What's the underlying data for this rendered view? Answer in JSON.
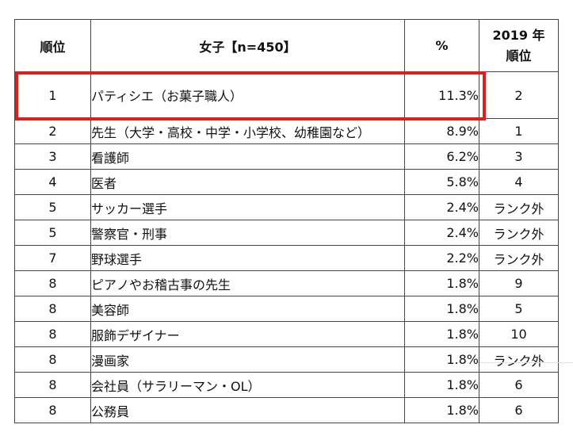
{
  "colors": {
    "highlight": "#e31b1b",
    "border": "#444444"
  },
  "header": {
    "rank": "順位",
    "item": "女子【n=450】",
    "percent": "%",
    "prev_line1": "2019 年",
    "prev_line2": "順位"
  },
  "rows": [
    {
      "rank": "1",
      "item": "パティシエ（お菓子職人）",
      "percent": "11.3%",
      "prev": "2"
    },
    {
      "rank": "2",
      "item": "先生（大学・高校・中学・小学校、幼稚園など）",
      "percent": "8.9%",
      "prev": "1"
    },
    {
      "rank": "3",
      "item": "看護師",
      "percent": "6.2%",
      "prev": "3"
    },
    {
      "rank": "4",
      "item": "医者",
      "percent": "5.8%",
      "prev": "4"
    },
    {
      "rank": "5",
      "item": "サッカー選手",
      "percent": "2.4%",
      "prev": "ランク外"
    },
    {
      "rank": "5",
      "item": "警察官・刑事",
      "percent": "2.4%",
      "prev": "ランク外"
    },
    {
      "rank": "7",
      "item": "野球選手",
      "percent": "2.2%",
      "prev": "ランク外"
    },
    {
      "rank": "8",
      "item": "ピアノやお稽古事の先生",
      "percent": "1.8%",
      "prev": "9"
    },
    {
      "rank": "8",
      "item": "美容師",
      "percent": "1.8%",
      "prev": "5"
    },
    {
      "rank": "8",
      "item": "服飾デザイナー",
      "percent": "1.8%",
      "prev": "10"
    },
    {
      "rank": "8",
      "item": "漫画家",
      "percent": "1.8%",
      "prev": "ランク外"
    },
    {
      "rank": "8",
      "item": "会社員（サラリーマン・OL）",
      "percent": "1.8%",
      "prev": "6"
    },
    {
      "rank": "8",
      "item": "公務員",
      "percent": "1.8%",
      "prev": "6"
    }
  ]
}
